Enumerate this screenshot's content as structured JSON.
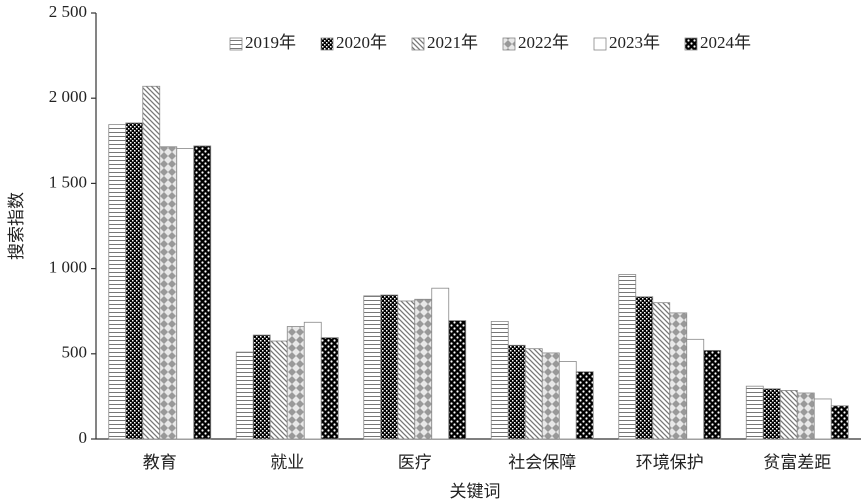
{
  "chart_data": {
    "type": "bar",
    "categories": [
      "教育",
      "就业",
      "医疗",
      "社会保障",
      "环境保护",
      "贫富差距"
    ],
    "x_label": "关键词",
    "y_label": "搜索指数",
    "series": [
      {
        "name": "2019年",
        "values": [
          1845,
          510,
          840,
          690,
          965,
          310
        ]
      },
      {
        "name": "2020年",
        "values": [
          1855,
          610,
          845,
          550,
          835,
          295
        ]
      },
      {
        "name": "2021年",
        "values": [
          2070,
          575,
          810,
          530,
          800,
          285
        ]
      },
      {
        "name": "2022年",
        "values": [
          1715,
          660,
          820,
          505,
          740,
          270
        ]
      },
      {
        "name": "2023年",
        "values": [
          1705,
          685,
          885,
          455,
          585,
          235
        ]
      },
      {
        "name": "2024年",
        "values": [
          1720,
          595,
          695,
          395,
          520,
          195
        ]
      }
    ],
    "ylim": [
      0,
      2500
    ],
    "yticks": [
      0,
      500,
      {
        "value": 1000,
        "label": "1 000"
      },
      {
        "value": 1500,
        "label": "1 500"
      },
      {
        "value": 2000,
        "label": "2 000"
      },
      {
        "value": 2500,
        "label": "2 500"
      }
    ],
    "grid": false
  }
}
